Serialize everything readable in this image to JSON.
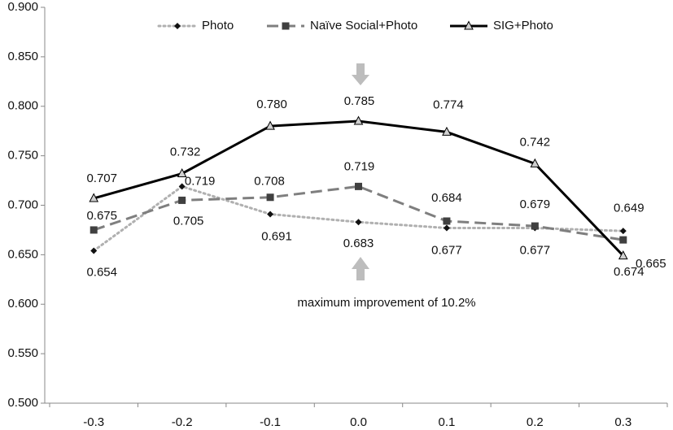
{
  "chart_data": {
    "type": "line",
    "annotation": "maximum improvement of 10.2%",
    "categories": [
      "-0.3",
      "-0.2",
      "-0.1",
      "0.0",
      "0.1",
      "0.2",
      "0.3"
    ],
    "series": [
      {
        "name": "Photo",
        "color": "#b0b0b0",
        "style": "dotted",
        "marker": "diamond",
        "marker_color": "#111111",
        "values": [
          0.654,
          0.719,
          0.691,
          0.683,
          0.677,
          0.677,
          0.674
        ],
        "value_labels": [
          "0.654",
          "0.719",
          "0.691",
          "0.683",
          "0.677",
          "0.677",
          "0.674"
        ]
      },
      {
        "name": "Naïve Social+Photo",
        "color": "#7f7f7f",
        "style": "dashed",
        "marker": "square",
        "marker_color": "#404040",
        "values": [
          0.675,
          0.705,
          0.708,
          0.719,
          0.684,
          0.679,
          0.665
        ],
        "value_labels": [
          "0.675",
          "0.705",
          "0.708",
          "0.719",
          "0.684",
          "0.679",
          "0.665"
        ]
      },
      {
        "name": "SIG+Photo",
        "color": "#000000",
        "style": "solid",
        "marker": "triangle",
        "marker_color": "#d0d0d0",
        "values": [
          0.707,
          0.732,
          0.78,
          0.785,
          0.774,
          0.742,
          0.649
        ],
        "value_labels": [
          "0.707",
          "0.732",
          "0.780",
          "0.785",
          "0.774",
          "0.742",
          "0.649"
        ]
      }
    ],
    "ylim": [
      0.5,
      0.9
    ],
    "yticks": [
      {
        "value": 0.5,
        "label": "0.500"
      },
      {
        "value": 0.55,
        "label": "0.550"
      },
      {
        "value": 0.6,
        "label": "0.600"
      },
      {
        "value": 0.65,
        "label": "0.650"
      },
      {
        "value": 0.7,
        "label": "0.700"
      },
      {
        "value": 0.75,
        "label": "0.750"
      },
      {
        "value": 0.8,
        "label": "0.800"
      },
      {
        "value": 0.85,
        "label": "0.850"
      },
      {
        "value": 0.9,
        "label": "0.900"
      }
    ],
    "grid": false,
    "legend": "top"
  }
}
